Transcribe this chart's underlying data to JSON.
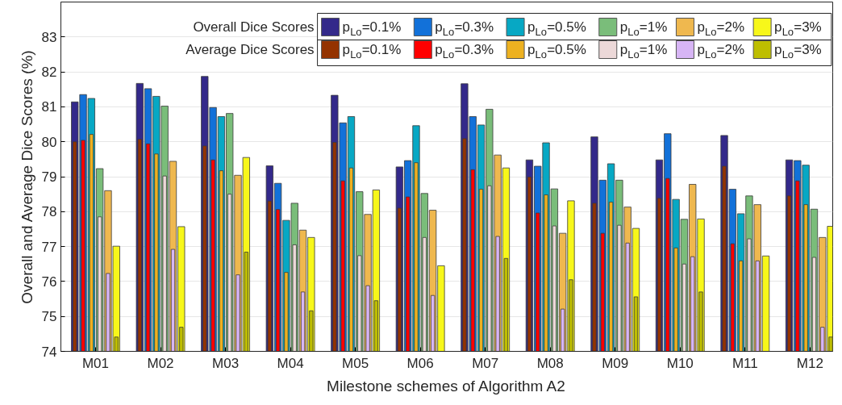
{
  "chart_data": {
    "type": "bar",
    "xlabel": "Milestone schemes of Algorithm A2",
    "ylabel": "Overall and Average Dice Scores (%)",
    "categories": [
      "M01",
      "M02",
      "M03",
      "M04",
      "M05",
      "M06",
      "M07",
      "M08",
      "M09",
      "M10",
      "M11",
      "M12"
    ],
    "ylim": [
      74,
      84
    ],
    "yticks": [
      74,
      75,
      76,
      77,
      78,
      79,
      80,
      81,
      82,
      83
    ],
    "grid": "y",
    "legend": "top right",
    "annotations": [
      "Overall Dice Scores",
      "Average Dice Scores"
    ],
    "series": [
      {
        "name": "p$_{Lo}$=0.1%",
        "color": "#33298a",
        "values": [
          81.14,
          81.67,
          81.87,
          79.31,
          81.33,
          79.28,
          81.66,
          79.48,
          80.14,
          79.48,
          80.18,
          79.48
        ]
      },
      {
        "name": "p$_{Lo}$=0.3%",
        "color": "#1271d9",
        "values": [
          81.35,
          81.52,
          80.98,
          78.81,
          80.54,
          79.46,
          80.72,
          79.3,
          78.9,
          80.23,
          78.64,
          79.46
        ]
      },
      {
        "name": "p$_{Lo}$=0.5%",
        "color": "#07a8c4",
        "values": [
          81.24,
          81.3,
          80.72,
          77.75,
          80.72,
          80.46,
          80.48,
          79.97,
          79.37,
          78.35,
          77.94,
          79.33
        ]
      },
      {
        "name": "p$_{Lo}$=1%",
        "color": "#7abd7a",
        "values": [
          79.23,
          81.02,
          80.81,
          78.24,
          78.57,
          78.52,
          80.93,
          78.65,
          78.9,
          77.78,
          78.45,
          78.07
        ]
      },
      {
        "name": "p$_{Lo}$=2%",
        "color": "#efb84f",
        "values": [
          78.6,
          79.44,
          79.04,
          77.47,
          77.92,
          78.04,
          79.62,
          77.38,
          78.13,
          78.78,
          78.2,
          77.26
        ]
      },
      {
        "name": "p$_{Lo}$=3%",
        "color": "#f7f71a",
        "values": [
          77.01,
          77.57,
          79.55,
          77.26,
          78.62,
          76.45,
          79.25,
          78.31,
          77.52,
          77.79,
          76.73,
          77.58
        ]
      },
      {
        "name": "p$_{Lo}$=0.1%",
        "color": "#943300",
        "values": [
          80.0,
          80.07,
          79.88,
          78.3,
          79.98,
          78.1,
          80.09,
          78.99,
          78.24,
          78.38,
          79.3,
          78.45
        ]
      },
      {
        "name": "p$_{Lo}$=0.3%",
        "color": "#ff0000",
        "values": [
          80.04,
          79.94,
          79.48,
          78.06,
          78.88,
          78.42,
          79.2,
          77.96,
          77.38,
          78.95,
          77.08,
          78.88
        ]
      },
      {
        "name": "p$_{Lo}$=0.5%",
        "color": "#edb120",
        "values": [
          80.21,
          79.65,
          79.17,
          76.26,
          79.25,
          79.4,
          78.64,
          78.48,
          78.27,
          76.96,
          76.59,
          78.2
        ]
      },
      {
        "name": "p$_{Lo}$=1%",
        "color": "#ecd8d8",
        "values": [
          77.85,
          79.02,
          78.5,
          77.05,
          76.74,
          77.26,
          78.74,
          77.59,
          77.61,
          76.5,
          77.22,
          76.69
        ]
      },
      {
        "name": "p$_{Lo}$=2%",
        "color": "#d7b5f5",
        "values": [
          76.23,
          76.92,
          76.19,
          75.7,
          75.88,
          75.6,
          77.29,
          75.21,
          77.1,
          76.71,
          76.59,
          74.69
        ]
      },
      {
        "name": "p$_{Lo}$=3%",
        "color": "#bebe00",
        "values": [
          74.41,
          74.69,
          76.84,
          75.16,
          75.45,
          null,
          76.66,
          76.05,
          75.56,
          75.7,
          null,
          74.41
        ]
      }
    ]
  }
}
